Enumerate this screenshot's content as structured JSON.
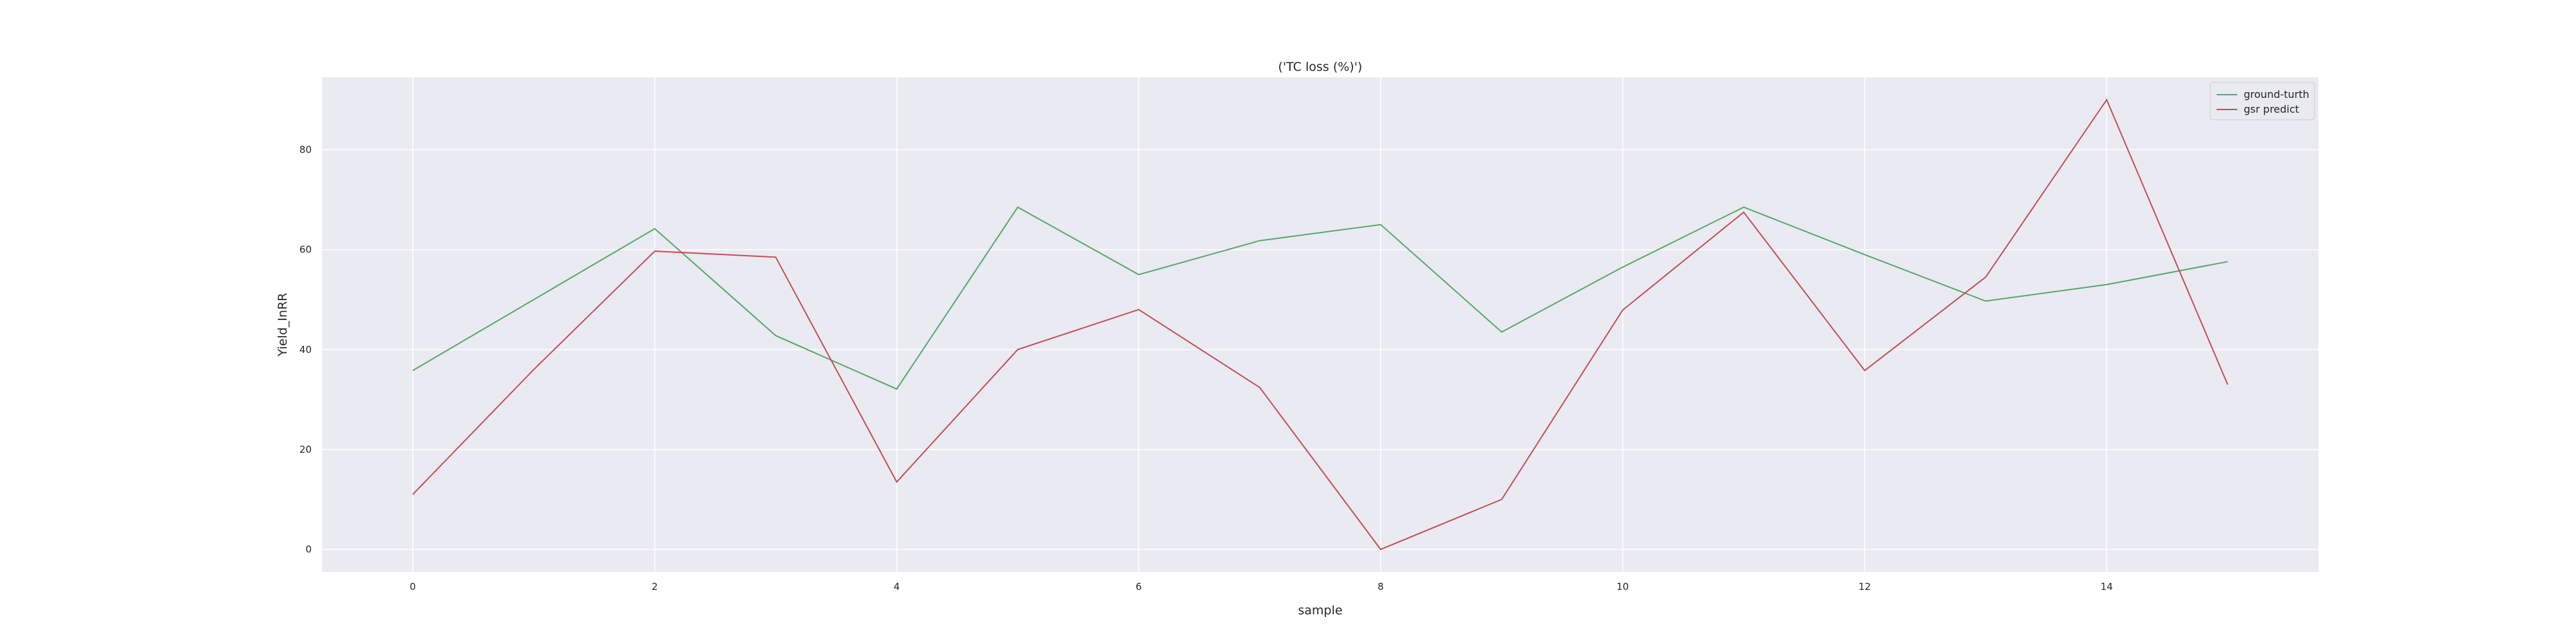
{
  "chart_data": {
    "type": "line",
    "title": "('TC loss (%)')",
    "xlabel": "sample",
    "ylabel": "Yield_InRR",
    "x": [
      0,
      1,
      2,
      3,
      4,
      5,
      6,
      7,
      8,
      9,
      10,
      11,
      12,
      13,
      14,
      15
    ],
    "xlim": [
      -0.75,
      15.75
    ],
    "ylim": [
      -4.5,
      94.5
    ],
    "xticks": [
      0,
      2,
      4,
      6,
      8,
      10,
      12,
      14
    ],
    "yticks": [
      0,
      20,
      40,
      60,
      80
    ],
    "grid": true,
    "legend": "top-right",
    "series": [
      {
        "name": "ground-turth",
        "color": "#55a868",
        "values": [
          35.8,
          50.0,
          64.2,
          42.8,
          32.1,
          68.5,
          55.0,
          61.8,
          65.0,
          43.5,
          56.5,
          68.5,
          59.0,
          49.7,
          53.0,
          57.6
        ]
      },
      {
        "name": "gsr predict",
        "color": "#c44e52",
        "values": [
          11.0,
          36.0,
          59.7,
          58.5,
          13.5,
          40.0,
          48.0,
          32.4,
          0.0,
          10.0,
          47.9,
          67.5,
          35.8,
          54.5,
          90.0,
          33.0
        ]
      }
    ],
    "colors": {
      "plot_background": "#eaeaf2",
      "grid": "#ffffff",
      "text": "#262626"
    }
  }
}
